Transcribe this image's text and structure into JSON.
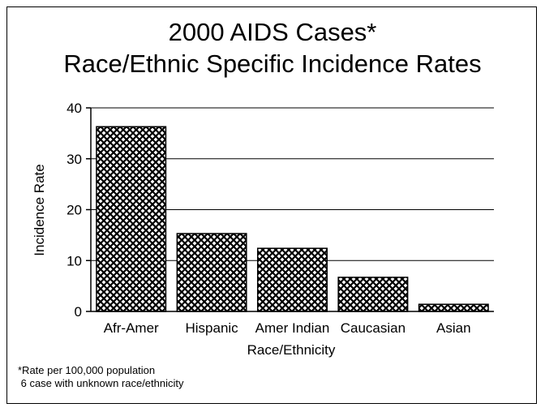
{
  "chart_data": {
    "type": "bar",
    "title": "2000 AIDS Cases*",
    "subtitle": "Race/Ethnic Specific Incidence Rates",
    "xlabel": "Race/Ethnicity",
    "ylabel": "Incidence Rate",
    "categories": [
      "Afr-Amer",
      "Hispanic",
      "Amer Indian",
      "Caucasian",
      "Asian"
    ],
    "values": [
      36.3,
      15.3,
      12.4,
      6.7,
      1.4
    ],
    "ylim": [
      0,
      40
    ],
    "yticks": [
      0,
      10,
      20,
      30,
      40
    ],
    "grid": true,
    "legend": "none",
    "bar_fill": "#000000",
    "bar_pattern": "crosshatch"
  },
  "footnotes": [
    "*Rate per 100,000 population",
    " 6 case with unknown race/ethnicity"
  ]
}
